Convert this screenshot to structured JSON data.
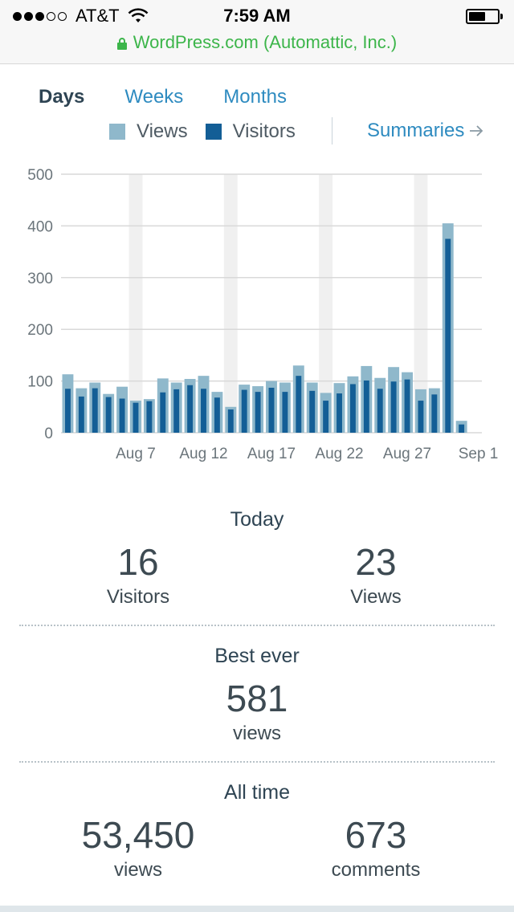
{
  "status_bar": {
    "carrier": "AT&T",
    "time": "7:59 AM",
    "url": "WordPress.com (Automattic, Inc.)"
  },
  "tabs": [
    {
      "label": "Days",
      "active": true
    },
    {
      "label": "Weeks",
      "active": false
    },
    {
      "label": "Months",
      "active": false
    }
  ],
  "legend": {
    "views_label": "Views",
    "visitors_label": "Visitors",
    "views_color": "#8fb8cb",
    "visitors_color": "#135e96"
  },
  "summaries_link": "Summaries",
  "chart_data": {
    "type": "bar",
    "categories": [
      "Aug 2",
      "Aug 3",
      "Aug 4",
      "Aug 5",
      "Aug 6",
      "Aug 7",
      "Aug 8",
      "Aug 9",
      "Aug 10",
      "Aug 11",
      "Aug 12",
      "Aug 13",
      "Aug 14",
      "Aug 15",
      "Aug 16",
      "Aug 17",
      "Aug 18",
      "Aug 19",
      "Aug 20",
      "Aug 21",
      "Aug 22",
      "Aug 23",
      "Aug 24",
      "Aug 25",
      "Aug 26",
      "Aug 27",
      "Aug 28",
      "Aug 29",
      "Aug 30",
      "Aug 31",
      "Sep 1"
    ],
    "tick_labels": [
      "Aug 7",
      "Aug 12",
      "Aug 17",
      "Aug 22",
      "Aug 27",
      "Sep 1"
    ],
    "series": [
      {
        "name": "Views",
        "values": [
          113,
          86,
          97,
          75,
          89,
          62,
          65,
          105,
          97,
          104,
          110,
          79,
          50,
          93,
          90,
          100,
          97,
          130,
          97,
          77,
          96,
          109,
          129,
          106,
          127,
          117,
          84,
          86,
          405,
          23,
          0
        ]
      },
      {
        "name": "Visitors",
        "values": [
          85,
          70,
          86,
          69,
          66,
          58,
          61,
          78,
          84,
          92,
          85,
          68,
          45,
          83,
          79,
          87,
          79,
          110,
          81,
          62,
          76,
          94,
          101,
          85,
          99,
          103,
          62,
          74,
          375,
          16,
          0
        ]
      }
    ],
    "weekend_shading": [
      5,
      12,
      19,
      26
    ],
    "y_ticks": [
      0,
      100,
      200,
      300,
      400,
      500
    ],
    "ylim": [
      0,
      500
    ],
    "grid": true
  },
  "today": {
    "title": "Today",
    "visitors_value": "16",
    "visitors_label": "Visitors",
    "views_value": "23",
    "views_label": "Views"
  },
  "best_ever": {
    "title": "Best ever",
    "value": "581",
    "label": "views"
  },
  "all_time": {
    "title": "All time",
    "views_value": "53,450",
    "views_label": "views",
    "comments_value": "673",
    "comments_label": "comments"
  }
}
